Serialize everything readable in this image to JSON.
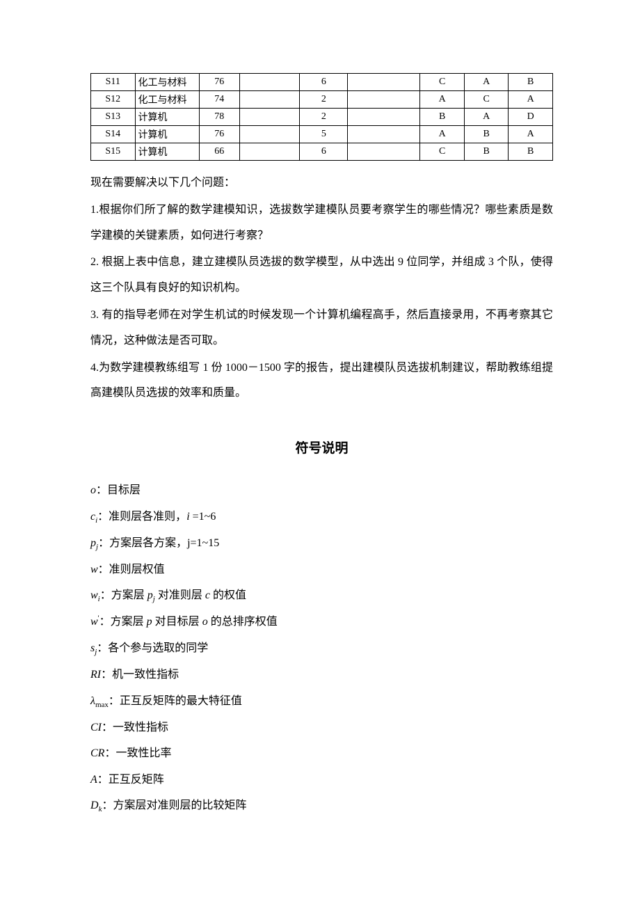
{
  "table": {
    "rows": [
      [
        "S11",
        "化工与材料",
        "76",
        "",
        "6",
        "",
        "C",
        "A",
        "B"
      ],
      [
        "S12",
        "化工与材料",
        "74",
        "",
        "2",
        "",
        "A",
        "C",
        "A"
      ],
      [
        "S13",
        "计算机",
        "78",
        "",
        "2",
        "",
        "B",
        "A",
        "D"
      ],
      [
        "S14",
        "计算机",
        "76",
        "",
        "5",
        "",
        "A",
        "B",
        "A"
      ],
      [
        "S15",
        "计算机",
        "66",
        "",
        "6",
        "",
        "C",
        "B",
        "B"
      ]
    ]
  },
  "paragraphs": {
    "p0": "现在需要解决以下几个问题：",
    "p1": "1.根据你们所了解的数学建模知识，选拔数学建模队员要考察学生的哪些情况？哪些素质是数学建模的关键素质，如何进行考察？",
    "p2": "2. 根据上表中信息，建立建模队员选拔的数学模型，从中选出 9 位同学，并组成 3 个队，使得这三个队具有良好的知识机构。",
    "p3": "3. 有的指导老师在对学生机试的时候发现一个计算机编程高手，然后直接录用，不再考察其它情况，这种做法是否可取。",
    "p4": "4.为数学建模教练组写 1 份 1000－1500 字的报告，提出建模队员选拔机制建议，帮助教练组提高建模队员选拔的效率和质量。"
  },
  "section_title": "符号说明",
  "symbols": {
    "o_desc": "：目标层",
    "ci_desc": "：准则层各准则，",
    "ci_range": " =1~6",
    "pj_desc": "：方案层各方案，j=1~15",
    "w_desc": "：准则层权值",
    "wi_a": "：方案层 ",
    "wi_b": " 对准则层 ",
    "wi_c": " 的权值",
    "wp_a": "：方案层 ",
    "wp_b": " 对目标层 ",
    "wp_c": " 的总排序权值",
    "sj_desc": "：各个参与选取的同学",
    "ri_desc": "：机一致性指标",
    "lambda_desc": "：正互反矩阵的最大特征值",
    "Ci_desc": "：一致性指标",
    "cr_desc": "：一致性比率",
    "a_desc": "：正互反矩阵",
    "dk_desc": "：方案层对准则层的比较矩阵"
  }
}
